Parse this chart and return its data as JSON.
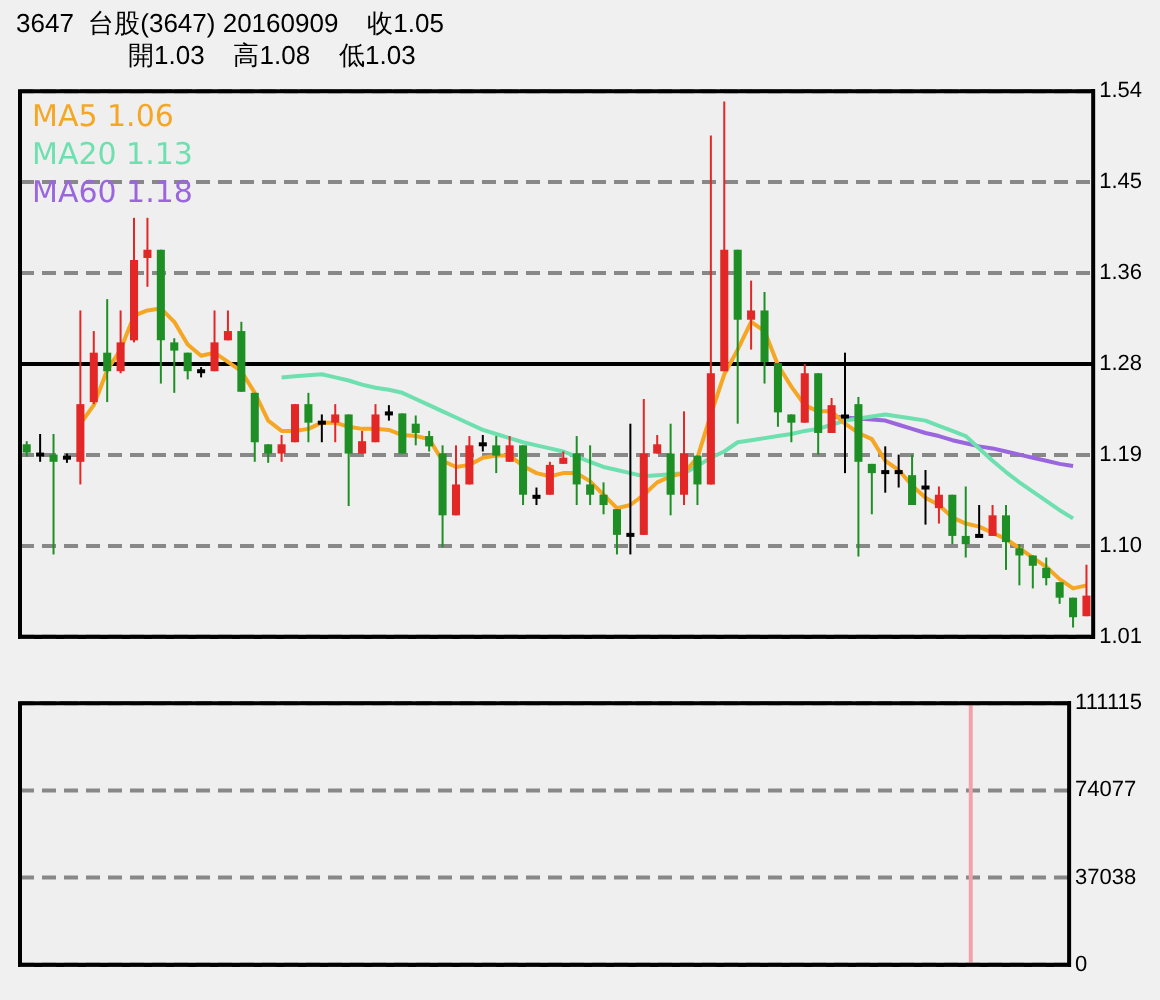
{
  "chart_data": [
    {
      "type": "candlestick",
      "title": "3647  台股(3647) 20160909    收1.05",
      "subtitle": "開1.03    高1.08    低1.03",
      "categories": [
        null,
        null,
        null,
        null,
        null,
        null,
        null,
        null,
        null,
        null,
        null,
        null,
        null,
        null,
        null,
        null,
        null,
        null,
        null,
        null,
        null,
        null,
        null,
        null,
        null,
        null,
        null,
        null,
        null,
        null,
        null,
        null,
        null,
        null,
        null,
        null,
        null,
        null,
        null,
        null,
        null,
        null,
        null,
        null,
        null,
        null,
        null,
        null,
        null,
        null,
        null,
        null,
        null,
        null,
        null,
        null,
        null,
        null,
        null,
        null,
        null,
        null,
        null,
        null,
        null,
        null,
        null,
        null,
        null,
        null,
        null,
        null,
        null,
        null,
        null,
        null,
        null,
        null,
        null,
        null
      ],
      "ohlc": [
        [
          1.197,
          1.2,
          1.185,
          1.189
        ],
        [
          1.187,
          1.207,
          1.18,
          1.187
        ],
        [
          1.187,
          1.207,
          1.09,
          1.18
        ],
        [
          1.184,
          1.188,
          1.179,
          1.184
        ],
        [
          1.18,
          1.327,
          1.158,
          1.236
        ],
        [
          1.238,
          1.307,
          1.236,
          1.286
        ],
        [
          1.286,
          1.338,
          1.238,
          1.268
        ],
        [
          1.268,
          1.327,
          1.266,
          1.296
        ],
        [
          1.298,
          1.417,
          1.296,
          1.376
        ],
        [
          1.378,
          1.417,
          1.35,
          1.386
        ],
        [
          1.386,
          1.386,
          1.256,
          1.298
        ],
        [
          1.296,
          1.3,
          1.247,
          1.288
        ],
        [
          1.286,
          1.286,
          1.26,
          1.268
        ],
        [
          1.268,
          1.272,
          1.262,
          1.268
        ],
        [
          1.268,
          1.327,
          1.268,
          1.296
        ],
        [
          1.298,
          1.327,
          1.298,
          1.307
        ],
        [
          1.307,
          1.316,
          1.248,
          1.248
        ],
        [
          1.247,
          1.247,
          1.18,
          1.199
        ],
        [
          1.197,
          1.197,
          1.179,
          1.188
        ],
        [
          1.188,
          1.206,
          1.18,
          1.197
        ],
        [
          1.199,
          1.236,
          1.199,
          1.236
        ],
        [
          1.236,
          1.247,
          1.199,
          1.218
        ],
        [
          1.218,
          1.226,
          1.199,
          1.218
        ],
        [
          1.218,
          1.236,
          1.199,
          1.226
        ],
        [
          1.226,
          1.226,
          1.137,
          1.188
        ],
        [
          1.188,
          1.21,
          1.188,
          1.2
        ],
        [
          1.199,
          1.236,
          1.199,
          1.226
        ],
        [
          1.227,
          1.235,
          1.22,
          1.227
        ],
        [
          1.227,
          1.227,
          1.188,
          1.188
        ],
        [
          1.217,
          1.225,
          1.196,
          1.208
        ],
        [
          1.205,
          1.21,
          1.19,
          1.195
        ],
        [
          1.188,
          1.196,
          1.097,
          1.128
        ],
        [
          1.128,
          1.196,
          1.128,
          1.158
        ],
        [
          1.158,
          1.205,
          1.158,
          1.196
        ],
        [
          1.197,
          1.206,
          1.19,
          1.197
        ],
        [
          1.196,
          1.205,
          1.169,
          1.186
        ],
        [
          1.18,
          1.205,
          1.18,
          1.196
        ],
        [
          1.196,
          1.196,
          1.138,
          1.148
        ],
        [
          1.146,
          1.155,
          1.138,
          1.146
        ],
        [
          1.148,
          1.18,
          1.148,
          1.177
        ],
        [
          1.178,
          1.19,
          1.178,
          1.184
        ],
        [
          1.188,
          1.205,
          1.138,
          1.158
        ],
        [
          1.158,
          1.196,
          1.138,
          1.148
        ],
        [
          1.148,
          1.16,
          1.129,
          1.138
        ],
        [
          1.134,
          1.134,
          1.09,
          1.109
        ],
        [
          1.109,
          1.217,
          1.09,
          1.109
        ],
        [
          1.109,
          1.241,
          1.109,
          1.188
        ],
        [
          1.188,
          1.206,
          1.188,
          1.197
        ],
        [
          1.188,
          1.217,
          1.128,
          1.148
        ],
        [
          1.148,
          1.229,
          1.138,
          1.188
        ],
        [
          1.186,
          1.186,
          1.138,
          1.158
        ],
        [
          1.158,
          1.497,
          1.158,
          1.266
        ],
        [
          1.268,
          1.53,
          1.268,
          1.386
        ],
        [
          1.386,
          1.386,
          1.217,
          1.318
        ],
        [
          1.318,
          1.356,
          1.289,
          1.327
        ],
        [
          1.327,
          1.345,
          1.256,
          1.277
        ],
        [
          1.276,
          1.276,
          1.214,
          1.228
        ],
        [
          1.226,
          1.226,
          1.199,
          1.218
        ],
        [
          1.218,
          1.275,
          1.218,
          1.266
        ],
        [
          1.266,
          1.266,
          1.187,
          1.208
        ],
        [
          1.208,
          1.242,
          1.208,
          1.235
        ],
        [
          1.224,
          1.286,
          1.169,
          1.224
        ],
        [
          1.236,
          1.243,
          1.088,
          1.18
        ],
        [
          1.178,
          1.178,
          1.129,
          1.169
        ],
        [
          1.17,
          1.195,
          1.15,
          1.17
        ],
        [
          1.17,
          1.187,
          1.155,
          1.17
        ],
        [
          1.167,
          1.187,
          1.138,
          1.138
        ],
        [
          1.155,
          1.172,
          1.119,
          1.155
        ],
        [
          1.135,
          1.156,
          1.12,
          1.148
        ],
        [
          1.148,
          1.148,
          1.1,
          1.108
        ],
        [
          1.108,
          1.156,
          1.087,
          1.1
        ],
        [
          1.108,
          1.138,
          1.108,
          1.108
        ],
        [
          1.108,
          1.138,
          1.108,
          1.128
        ],
        [
          1.128,
          1.138,
          1.075,
          1.102
        ],
        [
          1.096,
          1.1,
          1.06,
          1.089
        ],
        [
          1.089,
          1.089,
          1.057,
          1.079
        ],
        [
          1.077,
          1.087,
          1.06,
          1.067
        ],
        [
          1.063,
          1.063,
          1.042,
          1.048
        ],
        [
          1.048,
          1.048,
          1.019,
          1.029
        ],
        [
          1.03,
          1.08,
          1.03,
          1.05
        ]
      ],
      "series": [
        {
          "name": "MA5 1.06",
          "type": "line",
          "color": "#f5a623",
          "values": [
            null,
            null,
            null,
            null,
            1.217,
            1.235,
            1.269,
            1.289,
            1.322,
            1.327,
            1.329,
            1.316,
            1.294,
            1.283,
            1.286,
            1.277,
            1.268,
            1.247,
            1.22,
            1.21,
            1.21,
            1.212,
            1.218,
            1.218,
            1.214,
            1.212,
            1.212,
            1.211,
            1.206,
            1.205,
            1.202,
            1.181,
            1.175,
            1.177,
            1.184,
            1.186,
            1.186,
            1.176,
            1.169,
            1.166,
            1.169,
            1.169,
            1.161,
            1.148,
            1.135,
            1.138,
            1.148,
            1.16,
            1.166,
            1.169,
            1.184,
            1.226,
            1.265,
            1.289,
            1.316,
            1.307,
            1.274,
            1.253,
            1.235,
            1.229,
            1.229,
            1.217,
            1.208,
            1.202,
            1.181,
            1.172,
            1.157,
            1.145,
            1.138,
            1.126,
            1.12,
            1.117,
            1.111,
            1.105,
            1.096,
            1.087,
            1.078,
            1.066,
            1.057,
            1.06
          ]
        },
        {
          "name": "MA20 1.13",
          "type": "line",
          "color": "#6ee0b0",
          "values": [
            null,
            null,
            null,
            null,
            null,
            null,
            null,
            null,
            null,
            null,
            null,
            null,
            null,
            null,
            null,
            null,
            null,
            null,
            null,
            1.262,
            1.263,
            1.264,
            1.265,
            1.262,
            1.259,
            1.255,
            1.252,
            1.25,
            1.247,
            1.241,
            1.235,
            1.229,
            1.223,
            1.217,
            1.211,
            1.207,
            1.203,
            1.199,
            1.196,
            1.193,
            1.19,
            1.185,
            1.18,
            1.175,
            1.172,
            1.169,
            1.166,
            1.167,
            1.168,
            1.169,
            1.176,
            1.184,
            1.19,
            1.199,
            1.201,
            1.203,
            1.205,
            1.207,
            1.21,
            1.212,
            1.216,
            1.22,
            1.222,
            1.224,
            1.226,
            1.224,
            1.222,
            1.22,
            1.215,
            1.21,
            1.205,
            1.193,
            1.181,
            1.17,
            1.16,
            1.151,
            1.142,
            1.133,
            1.125,
            null
          ]
        },
        {
          "name": "MA60 1.18",
          "type": "line",
          "color": "#9966dd",
          "values": [
            null,
            null,
            null,
            null,
            null,
            null,
            null,
            null,
            null,
            null,
            null,
            null,
            null,
            null,
            null,
            null,
            null,
            null,
            null,
            null,
            null,
            null,
            null,
            null,
            null,
            null,
            null,
            null,
            null,
            null,
            null,
            null,
            null,
            null,
            null,
            null,
            null,
            null,
            null,
            null,
            null,
            null,
            null,
            null,
            null,
            null,
            null,
            null,
            null,
            null,
            null,
            null,
            null,
            null,
            null,
            null,
            null,
            null,
            null,
            null,
            1.224,
            1.223,
            1.222,
            1.221,
            1.22,
            1.216,
            1.212,
            1.208,
            1.205,
            1.201,
            1.198,
            1.195,
            1.193,
            1.19,
            1.187,
            1.184,
            1.181,
            1.178,
            1.176,
            null
          ]
        }
      ],
      "ylim": [
        1.01,
        1.54
      ],
      "yticks": [
        1.01,
        {
          "value": 1.0983,
          "label": "1.10"
        },
        {
          "value": 1.1867,
          "label": "1.19"
        },
        {
          "value": 1.275,
          "label": "1.28"
        },
        {
          "value": 1.3633,
          "label": "1.36"
        },
        {
          "value": 1.4517,
          "label": "1.45"
        },
        1.54
      ],
      "ref_lines": [
        {
          "axis": "y",
          "value": 1.275,
          "color": "#000000"
        }
      ],
      "grid": "y",
      "legend": "top left",
      "tick_labels": "y"
    },
    {
      "type": "bar",
      "categories": [
        null,
        null,
        null,
        null,
        null,
        null,
        null,
        null,
        null,
        null,
        null,
        null,
        null,
        null,
        null,
        null,
        null,
        null,
        null,
        null,
        null,
        null,
        null,
        null,
        null,
        null,
        null,
        null,
        null,
        null,
        null,
        null,
        null,
        null,
        null,
        null,
        null,
        null,
        null,
        null,
        null,
        null,
        null,
        null,
        null,
        null,
        null,
        null,
        null,
        null,
        null,
        null,
        null,
        null,
        null,
        null,
        null,
        null,
        null,
        null,
        null,
        null,
        null,
        null,
        null,
        null,
        null,
        null,
        null,
        null,
        null,
        null,
        null,
        null,
        null,
        null,
        null,
        null,
        null,
        null
      ],
      "values": [
        0,
        0,
        0,
        0,
        0,
        0,
        0,
        0,
        0,
        0,
        0,
        0,
        0,
        0,
        0,
        0,
        0,
        0,
        0,
        0,
        0,
        0,
        0,
        0,
        0,
        0,
        0,
        0,
        0,
        0,
        0,
        0,
        0,
        0,
        0,
        0,
        0,
        0,
        0,
        0,
        0,
        0,
        0,
        0,
        0,
        0,
        0,
        0,
        0,
        0,
        0,
        0,
        0,
        0,
        0,
        0,
        0,
        0,
        0,
        0,
        0,
        0,
        0,
        0,
        0,
        0,
        0,
        0,
        0,
        0,
        0,
        0,
        111115,
        0,
        0,
        0,
        0,
        0,
        0,
        0
      ],
      "color": "#f4a0a8",
      "ylim": [
        0,
        111115
      ],
      "yticks": [
        0,
        37038,
        74077,
        111115
      ],
      "grid": "y",
      "tick_labels": "y"
    }
  ]
}
